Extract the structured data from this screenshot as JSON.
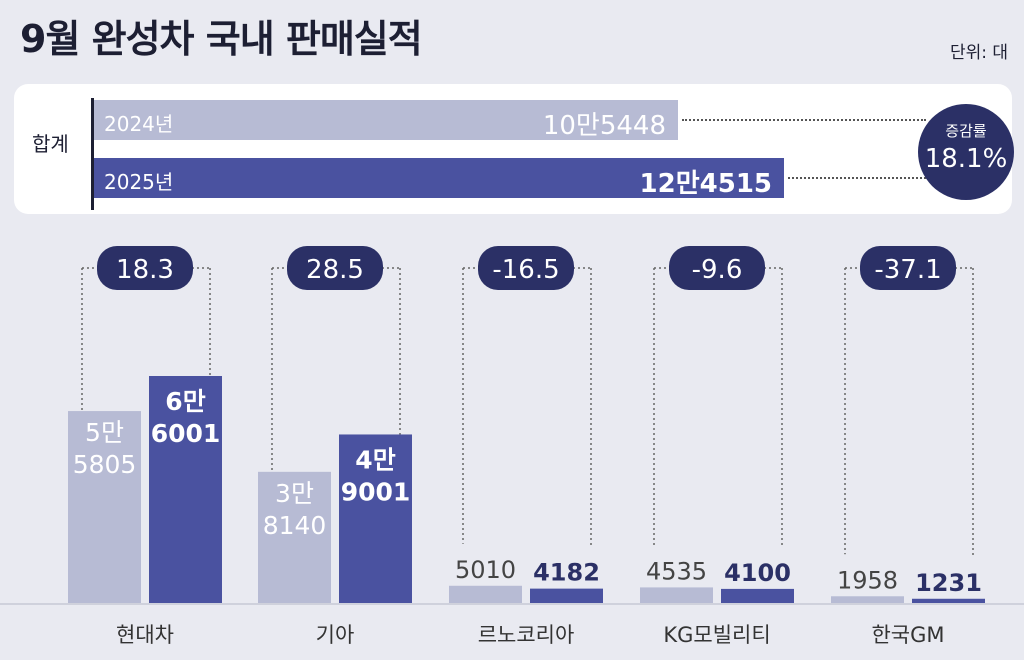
{
  "title": "9월 완성차 국내 판매실적",
  "unit": "단위: 대",
  "totals": {
    "label": "합계",
    "rows": [
      {
        "year": "2024년",
        "value": 105448,
        "value_label": "10만5448"
      },
      {
        "year": "2025년",
        "value": 124515,
        "value_label": "12만4515"
      }
    ],
    "rate_label": "증감률",
    "rate_value": "18.1%"
  },
  "chart_data": {
    "type": "bar",
    "categories": [
      "현대차",
      "기아",
      "르노코리아",
      "KG모빌리티",
      "한국GM"
    ],
    "series": [
      {
        "name": "2024년",
        "values": [
          55805,
          38140,
          5010,
          4535,
          1958
        ],
        "labels": [
          [
            "5만",
            "5805"
          ],
          [
            "3만",
            "8140"
          ],
          [
            "5010"
          ],
          [
            "4535"
          ],
          [
            "1958"
          ]
        ]
      },
      {
        "name": "2025년",
        "values": [
          66001,
          49001,
          4182,
          4100,
          1231
        ],
        "labels": [
          [
            "6만",
            "6001"
          ],
          [
            "4만",
            "9001"
          ],
          [
            "4182"
          ],
          [
            "4100"
          ],
          [
            "1231"
          ]
        ]
      }
    ],
    "change": [
      "18.3",
      "28.5",
      "-16.5",
      "-9.6",
      "-37.1"
    ],
    "colors": {
      "prev": "#b7bbd4",
      "curr": "#4a52a0",
      "badge": "#2b3066"
    }
  }
}
